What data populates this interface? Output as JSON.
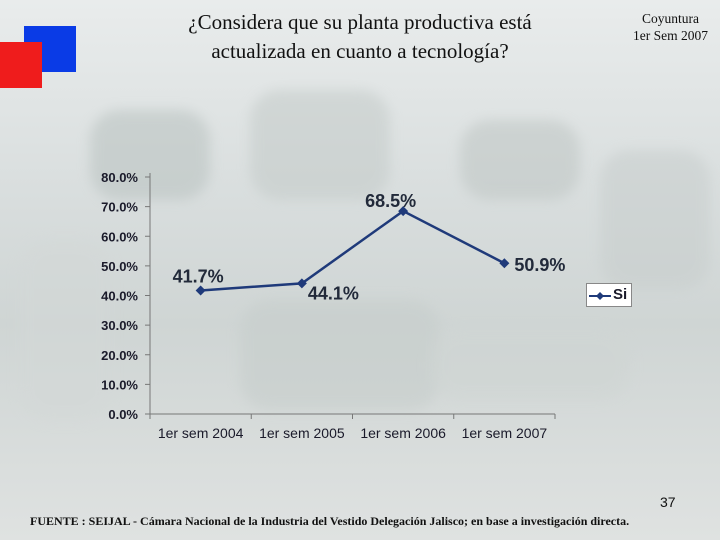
{
  "slide": {
    "title_line1": "¿Considera que su planta productiva está",
    "title_line2": "actualizada en cuanto a tecnología?",
    "badge_line1": "Coyuntura",
    "badge_line2": "1er Sem 2007",
    "page_number": "37",
    "footer": "FUENTE :  SEIJAL - Cámara Nacional de la Industria del Vestido Delegación Jalisco;  en base a investigación directa."
  },
  "colors": {
    "series": "#1f3a7a",
    "brand_blue": "#0a3be6",
    "brand_red": "#ef1c1c"
  },
  "chart_data": {
    "type": "line",
    "title": "",
    "categories": [
      "1er sem 2004",
      "1er sem 2005",
      "1er sem 2006",
      "1er sem 2007"
    ],
    "series": [
      {
        "name": "Si",
        "values": [
          41.7,
          44.1,
          68.5,
          50.9
        ],
        "labels": [
          "41.7%",
          "44.1%",
          "68.5%",
          "50.9%"
        ]
      }
    ],
    "yticks": [
      "0.0%",
      "10.0%",
      "20.0%",
      "30.0%",
      "40.0%",
      "50.0%",
      "60.0%",
      "70.0%",
      "80.0%"
    ],
    "ylim": [
      0,
      80
    ],
    "legend": "right",
    "xlabel": "",
    "ylabel": ""
  }
}
